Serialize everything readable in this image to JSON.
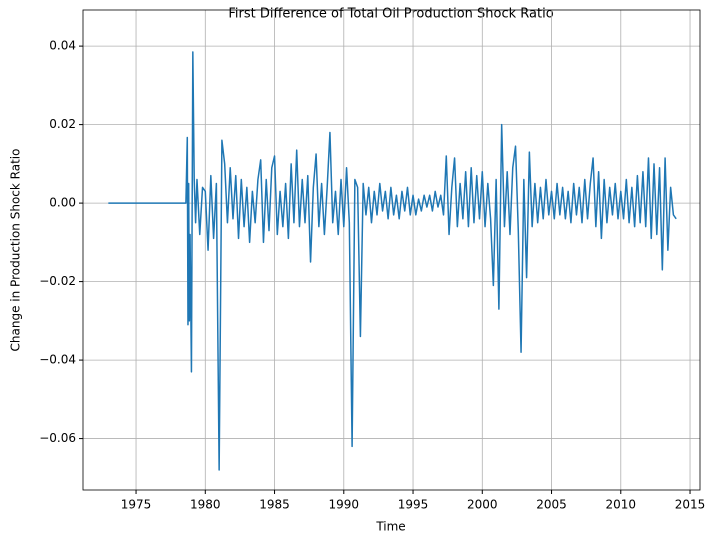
{
  "chart_data": {
    "type": "line",
    "title": "First Difference of Total Oil Production Shock Ratio",
    "x_label": "Time",
    "y_label": "Change in Production Shock Ratio",
    "xlim": [
      1971.17,
      2015.72
    ],
    "ylim": [
      -0.0731,
      0.0492
    ],
    "xticks": [
      1975,
      1980,
      1985,
      1990,
      1995,
      2000,
      2005,
      2010,
      2015
    ],
    "yticks": [
      {
        "value": -0.06,
        "label": "−0.06"
      },
      {
        "value": -0.04,
        "label": "−0.04"
      },
      {
        "value": -0.02,
        "label": "−0.02"
      },
      {
        "value": 0,
        "label": "0.00"
      },
      {
        "value": 0.02,
        "label": "0.02"
      },
      {
        "value": 0.04,
        "label": "0.04"
      }
    ],
    "grid": true,
    "color": "#1f77b4",
    "x": [
      1973.0,
      1978.6,
      1978.7,
      1978.75,
      1978.8,
      1978.85,
      1978.9,
      1979.0,
      1979.1,
      1979.2,
      1979.3,
      1979.4,
      1979.6,
      1979.8,
      1980.0,
      1980.2,
      1980.4,
      1980.6,
      1980.8,
      1981.0,
      1981.2,
      1981.4,
      1981.6,
      1981.8,
      1982.0,
      1982.2,
      1982.4,
      1982.6,
      1982.8,
      1983.0,
      1983.2,
      1983.4,
      1983.6,
      1983.8,
      1984.0,
      1984.2,
      1984.4,
      1984.6,
      1984.8,
      1985.0,
      1985.2,
      1985.4,
      1985.6,
      1985.8,
      1986.0,
      1986.2,
      1986.4,
      1986.6,
      1986.8,
      1987.0,
      1987.2,
      1987.4,
      1987.6,
      1987.8,
      1988.0,
      1988.2,
      1988.4,
      1988.6,
      1988.8,
      1989.0,
      1989.2,
      1989.4,
      1989.6,
      1989.8,
      1990.0,
      1990.2,
      1990.4,
      1990.6,
      1990.8,
      1991.0,
      1991.2,
      1991.4,
      1991.6,
      1991.8,
      1992.0,
      1992.2,
      1992.4,
      1992.6,
      1992.8,
      1993.0,
      1993.2,
      1993.4,
      1993.6,
      1993.8,
      1994.0,
      1994.2,
      1994.4,
      1994.6,
      1994.8,
      1995.0,
      1995.2,
      1995.4,
      1995.6,
      1995.8,
      1996.0,
      1996.2,
      1996.4,
      1996.6,
      1996.8,
      1997.0,
      1997.2,
      1997.4,
      1997.6,
      1997.8,
      1998.0,
      1998.2,
      1998.4,
      1998.6,
      1998.8,
      1999.0,
      1999.2,
      1999.4,
      1999.6,
      1999.8,
      2000.0,
      2000.2,
      2000.4,
      2000.6,
      2000.8,
      2001.0,
      2001.2,
      2001.4,
      2001.6,
      2001.8,
      2002.0,
      2002.2,
      2002.4,
      2002.6,
      2002.8,
      2003.0,
      2003.2,
      2003.4,
      2003.6,
      2003.8,
      2004.0,
      2004.2,
      2004.4,
      2004.6,
      2004.8,
      2005.0,
      2005.2,
      2005.4,
      2005.6,
      2005.8,
      2006.0,
      2006.2,
      2006.4,
      2006.6,
      2006.8,
      2007.0,
      2007.2,
      2007.4,
      2007.6,
      2007.8,
      2008.0,
      2008.2,
      2008.4,
      2008.6,
      2008.8,
      2009.0,
      2009.2,
      2009.4,
      2009.6,
      2009.8,
      2010.0,
      2010.2,
      2010.4,
      2010.6,
      2010.8,
      2011.0,
      2011.2,
      2011.4,
      2011.6,
      2011.8,
      2012.0,
      2012.2,
      2012.4,
      2012.6,
      2012.8,
      2013.0,
      2013.2,
      2013.4,
      2013.6,
      2013.8,
      2014.0
    ],
    "values": [
      0,
      0,
      0.0167,
      -0.031,
      0.005,
      -0.03,
      -0.008,
      -0.043,
      0.0385,
      0.006,
      -0.005,
      0.006,
      -0.008,
      0.004,
      0.003,
      -0.012,
      0.007,
      -0.009,
      0.005,
      -0.068,
      0.016,
      0.01,
      -0.005,
      0.009,
      -0.004,
      0.007,
      -0.009,
      0.006,
      -0.006,
      0.004,
      -0.01,
      0.003,
      -0.005,
      0.006,
      0.011,
      -0.01,
      0.006,
      -0.007,
      0.009,
      0.012,
      -0.008,
      0.003,
      -0.006,
      0.005,
      -0.009,
      0.01,
      -0.005,
      0.0135,
      -0.006,
      0.006,
      -0.005,
      0.007,
      -0.015,
      0.004,
      0.0125,
      -0.006,
      0.005,
      -0.008,
      0.004,
      0.018,
      -0.005,
      0.003,
      -0.008,
      0.006,
      -0.006,
      0.009,
      -0.005,
      -0.062,
      0.006,
      0.004,
      -0.034,
      0.005,
      -0.003,
      0.004,
      -0.005,
      0.003,
      -0.003,
      0.005,
      -0.002,
      0.003,
      -0.004,
      0.004,
      -0.003,
      0.002,
      -0.004,
      0.003,
      -0.002,
      0.004,
      -0.003,
      0.002,
      -0.003,
      0.001,
      -0.002,
      0.002,
      -0.001,
      0.002,
      -0.002,
      0.003,
      -0.001,
      0.002,
      -0.003,
      0.012,
      -0.008,
      0.004,
      0.0115,
      -0.006,
      0.005,
      -0.004,
      0.008,
      -0.006,
      0.009,
      -0.005,
      0.007,
      -0.004,
      0.008,
      -0.006,
      0.005,
      -0.004,
      -0.021,
      0.006,
      -0.027,
      0.02,
      -0.006,
      0.008,
      -0.008,
      0.009,
      0.0145,
      -0.007,
      -0.038,
      0.006,
      -0.019,
      0.013,
      -0.006,
      0.005,
      -0.005,
      0.004,
      -0.004,
      0.006,
      -0.003,
      0.003,
      -0.004,
      0.005,
      -0.003,
      0.004,
      -0.004,
      0.003,
      -0.005,
      0.005,
      -0.003,
      0.004,
      -0.005,
      0.006,
      -0.004,
      0.005,
      0.0115,
      -0.006,
      0.008,
      -0.009,
      0.006,
      -0.005,
      0.004,
      -0.003,
      0.005,
      -0.004,
      0.003,
      -0.004,
      0.006,
      -0.005,
      0.004,
      -0.006,
      0.007,
      -0.005,
      0.008,
      -0.006,
      0.0115,
      -0.009,
      0.01,
      -0.008,
      0.009,
      -0.017,
      0.0115,
      -0.012,
      0.004,
      -0.003,
      -0.004
    ]
  }
}
